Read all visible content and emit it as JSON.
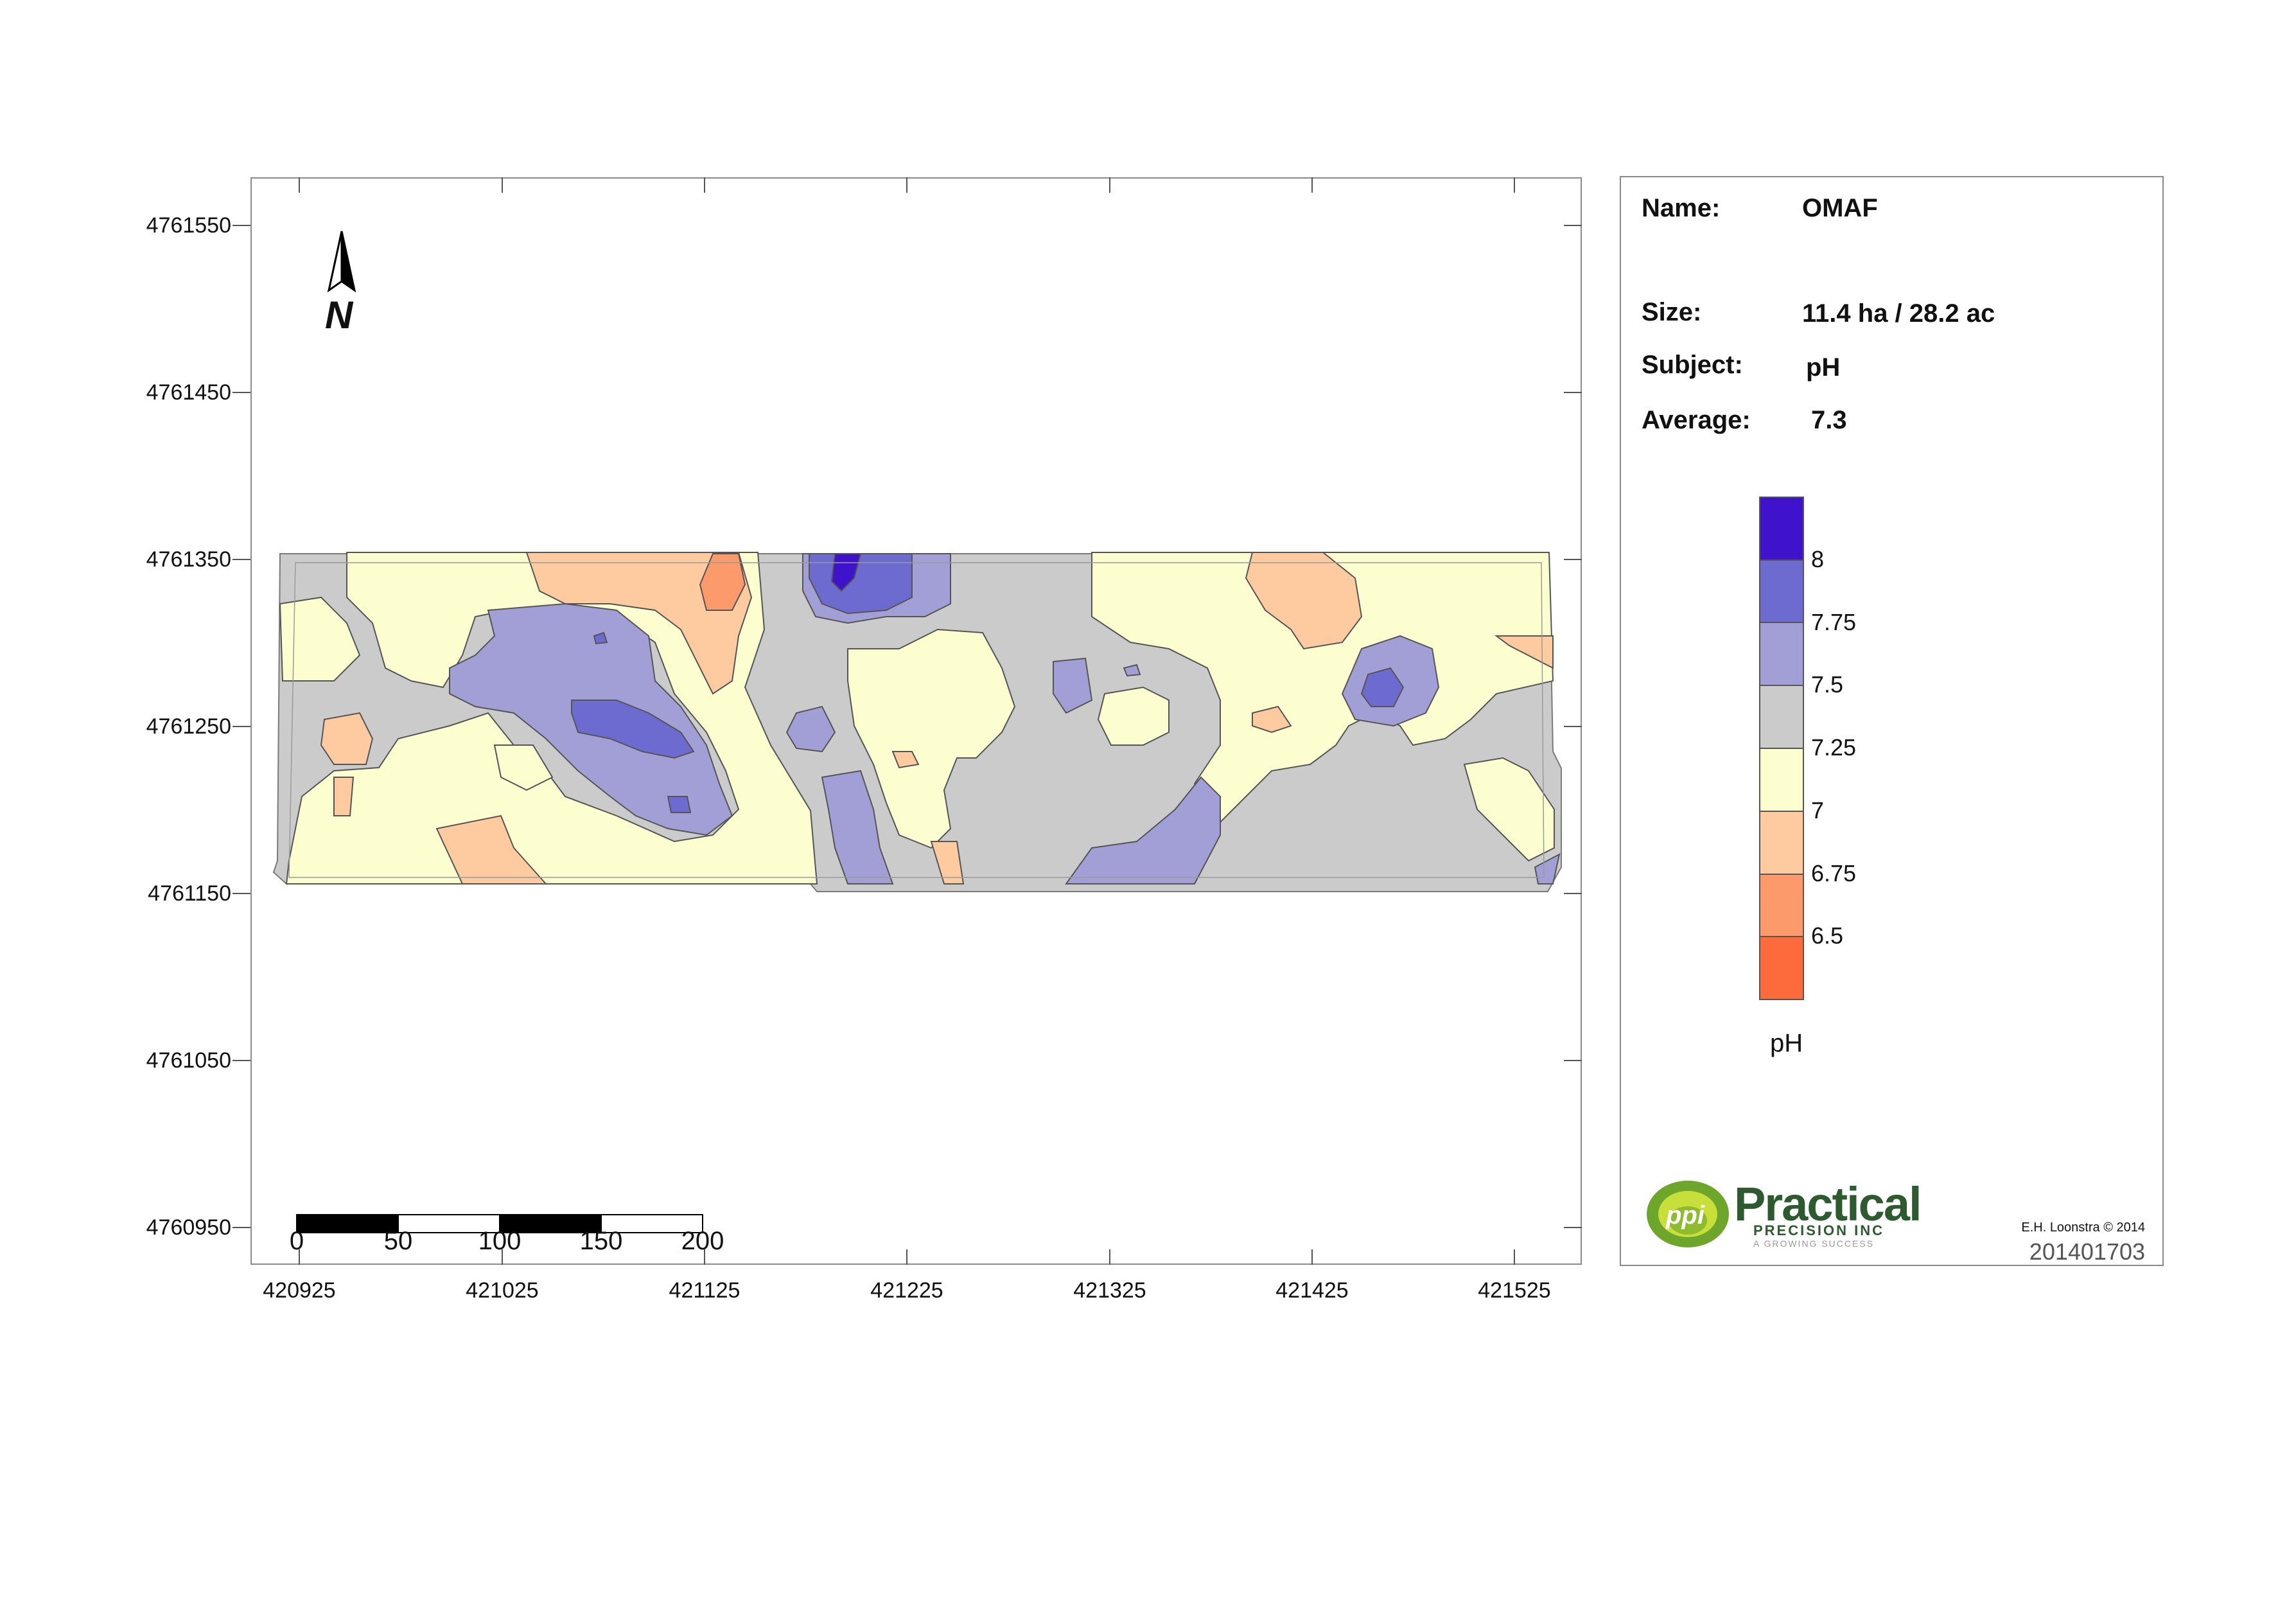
{
  "map": {
    "y_ticks": [
      "4761550",
      "4761450",
      "4761350",
      "4761250",
      "4761150",
      "4761050",
      "4760950"
    ],
    "x_ticks": [
      "420925",
      "421025",
      "421125",
      "421225",
      "421325",
      "421425",
      "421525"
    ],
    "north_label": "N",
    "scale_bar": [
      "0",
      "50",
      "100",
      "150",
      "200"
    ]
  },
  "info": {
    "name_label": "Name:",
    "name_value": "OMAF",
    "size_label": "Size:",
    "size_value": "11.4 ha / 28.2 ac",
    "subject_label": "Subject:",
    "subject_value": "pH",
    "average_label": "Average:",
    "average_value": "7.3"
  },
  "legend": {
    "title": "pH",
    "breaks": [
      "8",
      "7.75",
      "7.5",
      "7.25",
      "7",
      "6.75",
      "6.5"
    ],
    "colors": [
      "#3f13cc",
      "#6d6bcf",
      "#a29fd6",
      "#cbcbcb",
      "#fdfed0",
      "#fdcb9f",
      "#fd9a6b",
      "#fd6a3b"
    ]
  },
  "logo": {
    "mark": "ppi",
    "name": "Practical",
    "sub": "PRECISION INC",
    "tagline": "A GROWING SUCCESS"
  },
  "credit": "E.H. Loonstra © 2014",
  "document_code": "201401703"
}
